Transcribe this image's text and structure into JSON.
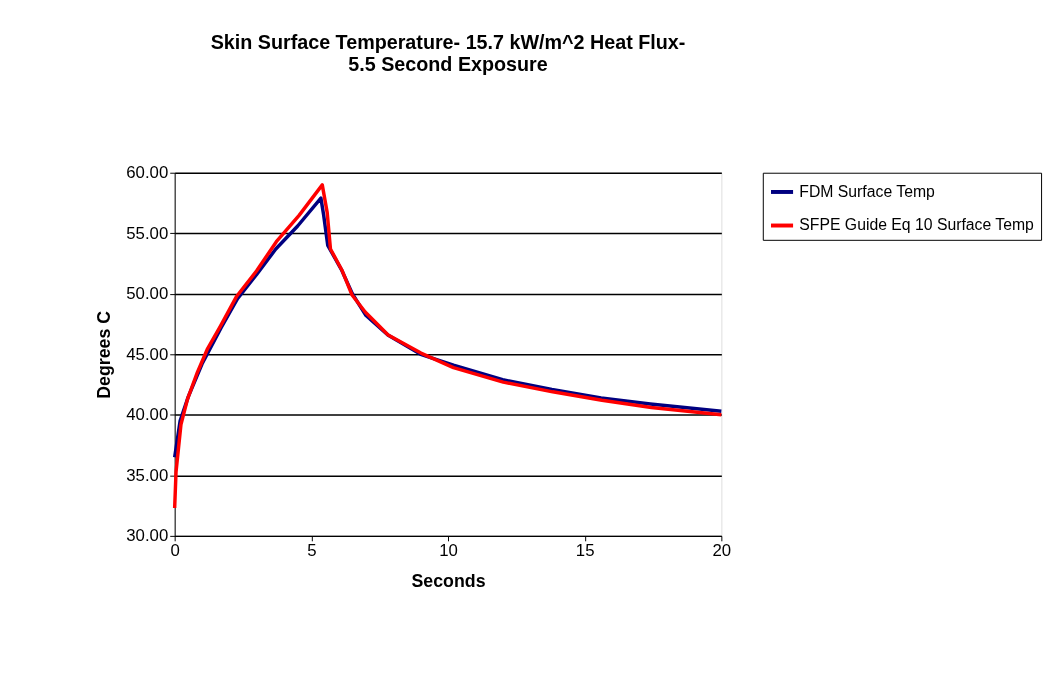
{
  "chart_data": {
    "type": "line",
    "title": "Skin Surface Temperature- 15.7 kW/m^2 Heat Flux-\n5.5 Second Exposure",
    "xlabel": "Seconds",
    "ylabel": "Degrees C",
    "xlim": [
      0,
      20
    ],
    "xticks": [
      0,
      5,
      10,
      15,
      20
    ],
    "ylim": [
      30,
      60
    ],
    "yticks": [
      {
        "value": 30,
        "label": "30.00"
      },
      {
        "value": 35,
        "label": "35.00"
      },
      {
        "value": 40,
        "label": "40.00"
      },
      {
        "value": 45,
        "label": "45.00"
      },
      {
        "value": 50,
        "label": "50.00"
      },
      {
        "value": 55,
        "label": "55.00"
      },
      {
        "value": 60,
        "label": "60.00"
      }
    ],
    "grid": "y",
    "legend": "right",
    "marker": "none",
    "line_style": "solid",
    "series": [
      {
        "name": "FDM Surface Temp",
        "color": "#000080",
        "x": [
          0,
          0.2,
          0.5,
          1,
          1.7,
          2.3,
          3,
          3.7,
          4.5,
          5.35,
          5.45,
          5.6,
          6.1,
          6.5,
          7,
          7.8,
          9,
          10.2,
          12,
          13.8,
          15.6,
          17.4,
          20
        ],
        "values": [
          36.5,
          39.5,
          41.5,
          44.2,
          47.2,
          49.6,
          51.6,
          53.7,
          55.6,
          57.9,
          56.5,
          54.0,
          52.0,
          50.0,
          48.2,
          46.6,
          45.0,
          44.1,
          42.9,
          42.1,
          41.4,
          40.9,
          40.3
        ]
      },
      {
        "name": "SFPE Guide Eq 10 Surface Temp",
        "color": "#ff0000",
        "x": [
          0,
          0.05,
          0.23,
          0.47,
          0.83,
          1.19,
          1.67,
          2.27,
          3,
          3.72,
          4.56,
          5.4,
          5.58,
          5.7,
          6.13,
          6.49,
          6.97,
          7.81,
          9.01,
          10.2,
          12.02,
          13.83,
          15.63,
          17.44,
          20
        ],
        "values": [
          32.3,
          35.3,
          39.2,
          41.3,
          43.5,
          45.4,
          47.3,
          49.8,
          51.9,
          54.3,
          56.5,
          59.0,
          56.7,
          53.7,
          51.9,
          49.9,
          48.5,
          46.6,
          45.1,
          43.9,
          42.7,
          41.9,
          41.2,
          40.6,
          40.0
        ]
      }
    ]
  }
}
